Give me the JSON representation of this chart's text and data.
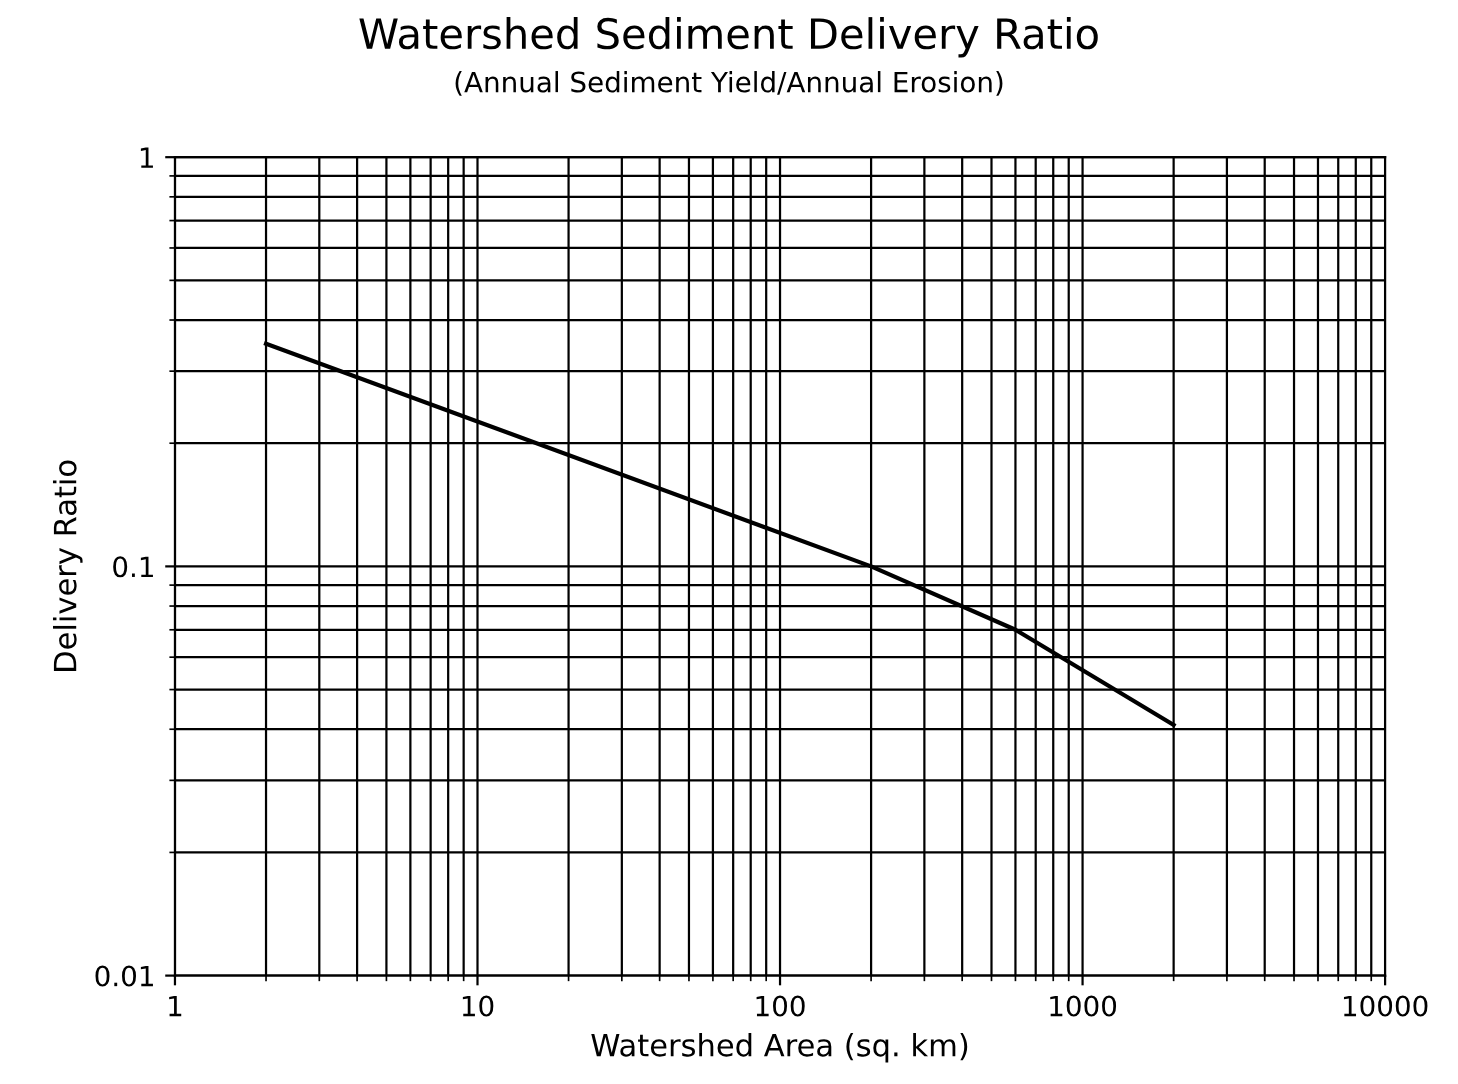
{
  "chart_data": {
    "type": "line",
    "title": "Watershed Sediment Delivery Ratio",
    "subtitle": "(Annual Sediment Yield/Annual Erosion)",
    "xlabel": "Watershed Area (sq. km)",
    "ylabel": "Delivery Ratio",
    "series": [
      {
        "color": "#000000",
        "x": [
          2,
          200,
          600,
          2000
        ],
        "values": [
          0.35,
          0.1,
          0.07,
          0.041
        ]
      }
    ],
    "log": "xy",
    "xlim": [
      1,
      10000
    ],
    "ylim": [
      0.01,
      1
    ],
    "xticks": [
      1,
      10,
      100,
      1000,
      10000
    ],
    "yticks": [
      0.01,
      0.1,
      1
    ],
    "grid": true,
    "line_style": "solid",
    "marker": "none"
  }
}
